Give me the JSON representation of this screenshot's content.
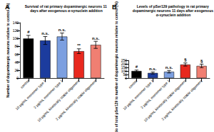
{
  "chart_data": [
    {
      "type": "bar",
      "label": "A",
      "title": "Survival of rat primary dopaminergic neurons 11 days after exogenous α-synuclein addition",
      "y_label": "Number of dopaminergic neurons relative to control (%)",
      "categories": [
        "control",
        "10 µg/mL monomer type 1",
        "2 µg/mL monomer type 1",
        "10 µg/mL kinetically stable oligomers",
        "2 µg/mL kinetically stable oligomers"
      ],
      "values": [
        100,
        95,
        105,
        68,
        84
      ],
      "errors": [
        8,
        10,
        9,
        6,
        9
      ],
      "annotations": [
        "#",
        "n.s.",
        "n.s.",
        "**",
        "n.s."
      ],
      "colors": [
        "#000000",
        "#1c3c9e",
        "#7c9fe0",
        "#e8281e",
        "#f07f72"
      ],
      "ylim": [
        0,
        140
      ],
      "yticks": [
        0,
        20,
        40,
        60,
        80,
        100,
        120,
        140
      ],
      "grid": false
    },
    {
      "type": "bar",
      "label": "B",
      "title": "Levels of pSer129 pathology in rat primary dopaminergic neurons 11 days after exogenous α-synuclein addition",
      "y_label": "Ratio of total pSer129 to number of dopaminergic neurons relative to control (%)",
      "categories": [
        "control",
        "10 µg/mL monomer type 1",
        "2 µg/mL monomer type 1",
        "10 µg/mL kinetically stable oligomers",
        "2 µg/mL kinetically stable oligomers"
      ],
      "values": [
        100,
        72,
        90,
        192,
        172
      ],
      "errors": [
        13,
        14,
        18,
        22,
        25
      ],
      "annotations": [
        "#",
        "n.s.",
        "n.s.",
        "§",
        "§"
      ],
      "colors": [
        "#000000",
        "#1c3c9e",
        "#7c9fe0",
        "#e8281e",
        "#f07f72"
      ],
      "ylim": [
        0,
        250
      ],
      "yticks": [
        0,
        50,
        100,
        150,
        200,
        250
      ],
      "grid": false
    }
  ]
}
